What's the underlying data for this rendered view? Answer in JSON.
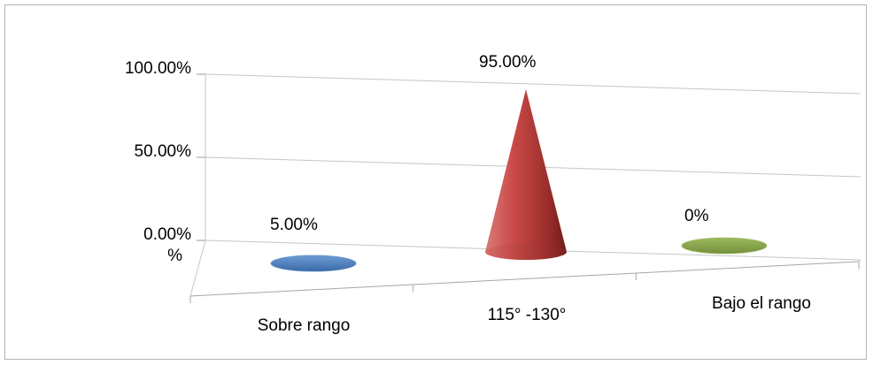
{
  "chart_data": {
    "type": "bar",
    "style": "3d-cone",
    "categories": [
      "Sobre rango",
      "115° -130°",
      "Bajo el rango"
    ],
    "values": [
      5.0,
      95.0,
      0.0
    ],
    "data_labels": [
      "5.00%",
      "95.00%",
      "0%"
    ],
    "colors": [
      "#4a7ebb",
      "#c0504d",
      "#9bbb59"
    ],
    "ylim": [
      0,
      100
    ],
    "y_ticks": [
      {
        "value": 0,
        "label": "0.00%\n%"
      },
      {
        "value": 50,
        "label": "50.00%"
      },
      {
        "value": 100,
        "label": "100.00%"
      }
    ],
    "grid": true,
    "legend": "none",
    "title": "",
    "xlabel": "",
    "ylabel": ""
  }
}
